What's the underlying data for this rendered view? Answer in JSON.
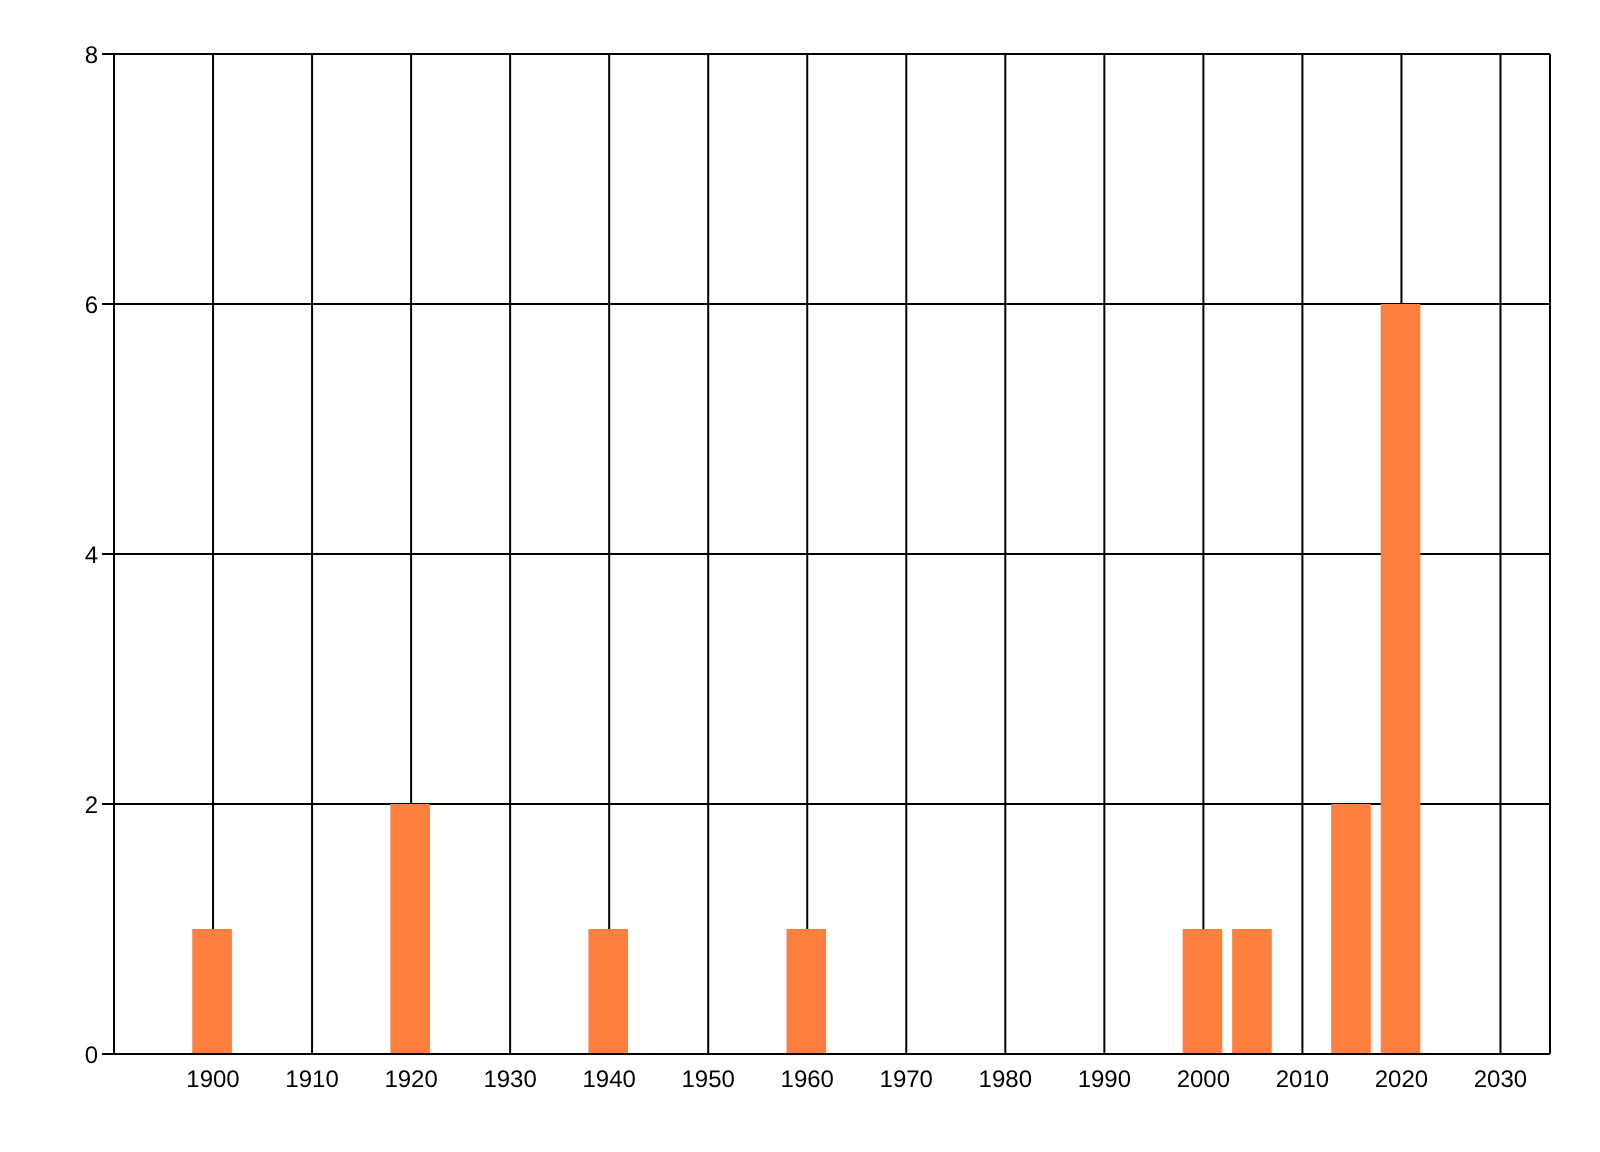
{
  "chart_data": {
    "type": "bar",
    "x": [
      1900,
      1920,
      1940,
      1960,
      2000,
      2005,
      2015,
      2020
    ],
    "values": [
      1,
      2,
      1,
      1,
      1,
      1,
      2,
      6
    ],
    "color": "#ff7f3f",
    "xlim": [
      1890,
      2035
    ],
    "xticks": [
      1900,
      1910,
      1920,
      1930,
      1940,
      1950,
      1960,
      1970,
      1980,
      1990,
      2000,
      2010,
      2020,
      2030
    ],
    "ylim": [
      0,
      8
    ],
    "yticks": [
      0,
      2,
      4,
      6,
      8
    ],
    "grid": true
  }
}
